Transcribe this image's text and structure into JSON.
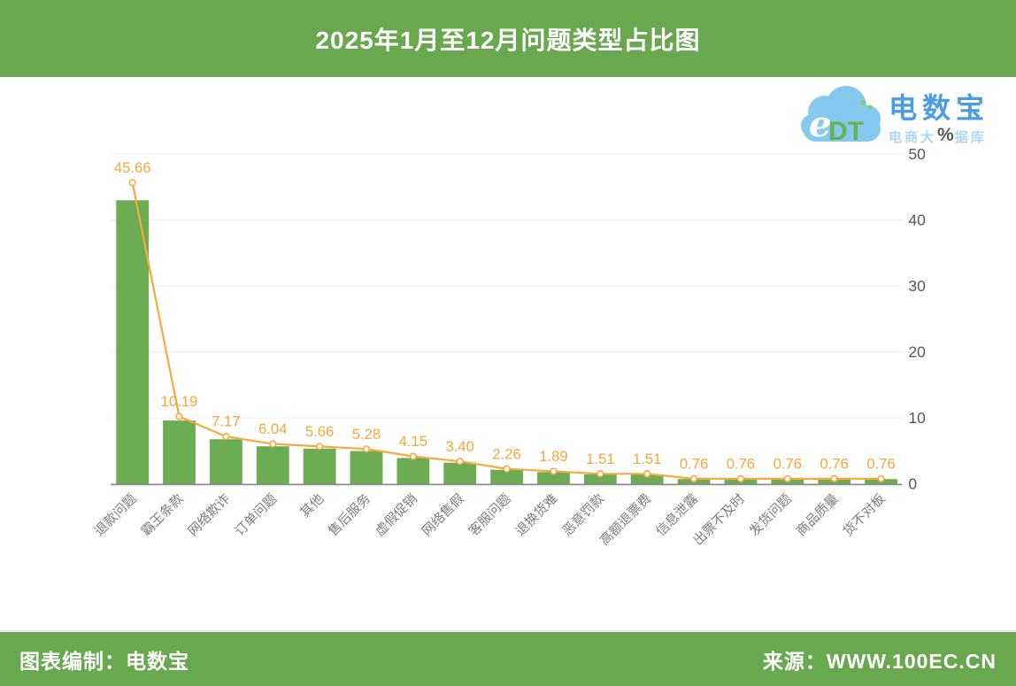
{
  "header": {
    "title": "2025年1月至12月问题类型占比图"
  },
  "logo": {
    "cloud_text_e": "e",
    "cloud_text_dt": "DT",
    "brand": "电数宝",
    "subtitle_prefix": "电商大",
    "subtitle_suffix": "据库"
  },
  "chart_data": {
    "type": "bar",
    "line_overlay": true,
    "title": "2025年1月至12月问题类型占比图",
    "categories": [
      "退款问题",
      "霸王条款",
      "网络欺诈",
      "订单问题",
      "其他",
      "售后服务",
      "虚假促销",
      "网络售假",
      "客服问题",
      "退换货难",
      "恶意罚款",
      "高额退票费",
      "信息泄露",
      "出票不及时",
      "发货问题",
      "商品质量",
      "货不对板"
    ],
    "values": [
      45.66,
      10.19,
      7.17,
      6.04,
      5.66,
      5.28,
      4.15,
      3.4,
      2.26,
      1.89,
      1.51,
      1.51,
      0.76,
      0.76,
      0.76,
      0.76,
      0.76
    ],
    "unit": "%",
    "xlabel": "",
    "ylabel": "%",
    "y_ticks": [
      0,
      10,
      20,
      30,
      40,
      50
    ],
    "ylim": [
      0,
      50
    ],
    "grid": true,
    "legend": "none",
    "bar_color": "#6CAC52",
    "line_color": "#F8A83C",
    "marker_fill": "#FFFFFF",
    "label_color": "#F9A63A",
    "tick_color": "#595959",
    "category_color": "#7D7D7D",
    "grid_color": "#EBEBEB",
    "axis_color": "#8C8C8C",
    "accent_green": "#6AA850",
    "brand_blue": "#4A9CE2"
  },
  "footer": {
    "left": "图表编制：电数宝",
    "right": "来源：WWW.100EC.CN"
  }
}
